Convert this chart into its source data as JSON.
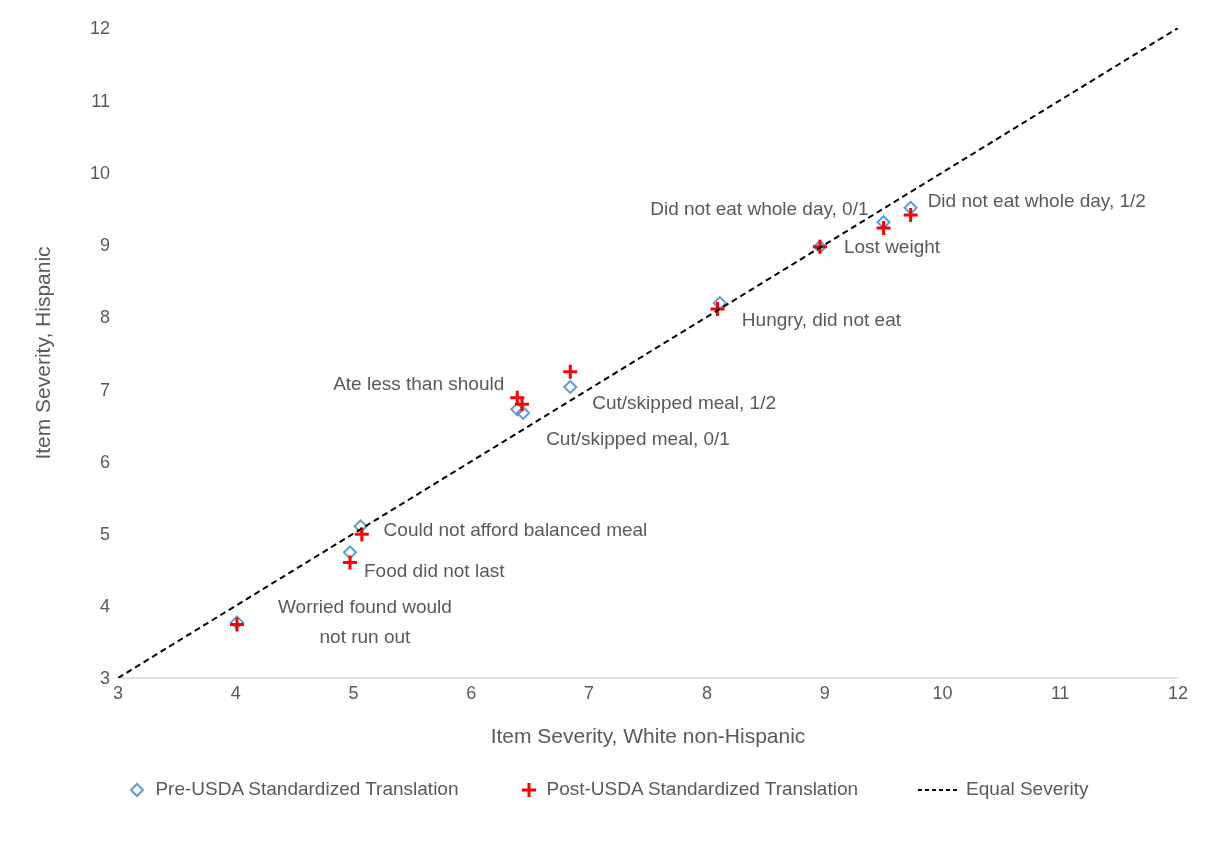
{
  "chart_data": {
    "type": "scatter",
    "xlabel": "Item Severity, White non-Hispanic",
    "ylabel": "Item Severity, Hispanic",
    "xlim": [
      3,
      12
    ],
    "xticks": [
      3,
      4,
      5,
      6,
      7,
      8,
      9,
      10,
      11,
      12
    ],
    "ylim": [
      3,
      12
    ],
    "yticks": [
      3,
      4,
      5,
      6,
      7,
      8,
      9,
      10,
      11,
      12
    ],
    "grid": false,
    "legend": "bottom",
    "series": [
      {
        "name": "Pre-USDA Standardized Translation",
        "color": "#5b9bd5",
        "marker": "diamond",
        "x": [
          4.01,
          4.97,
          5.06,
          6.39,
          6.44,
          6.84,
          8.11,
          8.96,
          9.5,
          9.73
        ],
        "values": [
          3.77,
          4.74,
          5.1,
          6.72,
          6.67,
          7.03,
          8.19,
          8.97,
          9.31,
          9.51
        ]
      },
      {
        "name": "Post-USDA Standardized Translation",
        "color": "#ff0000",
        "marker": "cross",
        "x": [
          4.01,
          4.97,
          5.07,
          6.39,
          6.43,
          6.84,
          8.09,
          8.96,
          9.5,
          9.73
        ],
        "values": [
          3.74,
          4.6,
          4.99,
          6.88,
          6.79,
          7.24,
          8.11,
          8.97,
          9.23,
          9.41
        ]
      },
      {
        "name": "Equal Severity",
        "type": "line",
        "color": "#000000",
        "marker": "none",
        "line_style": "dashed",
        "x": [
          3,
          12
        ],
        "values": [
          3,
          12
        ]
      }
    ],
    "annotations": [
      {
        "text": "Worried found would\nnot run out",
        "x": 4.01,
        "y": 3.77
      },
      {
        "text": "Food did not last",
        "x": 4.97,
        "y": 4.74
      },
      {
        "text": "Could not afford balanced meal",
        "x": 5.06,
        "y": 5.1
      },
      {
        "text": "Ate less than should",
        "x": 6.39,
        "y": 6.72
      },
      {
        "text": "Cut/skipped meal, 0/1",
        "x": 6.44,
        "y": 6.67
      },
      {
        "text": "Cut/skipped meal, 1/2",
        "x": 6.84,
        "y": 7.03
      },
      {
        "text": "Hungry, did not eat",
        "x": 8.11,
        "y": 8.19
      },
      {
        "text": "Lost weight",
        "x": 8.96,
        "y": 8.97
      },
      {
        "text": "Did not eat whole day, 0/1",
        "x": 9.5,
        "y": 9.31
      },
      {
        "text": "Did not eat whole day, 1/2",
        "x": 9.73,
        "y": 9.51
      }
    ]
  }
}
